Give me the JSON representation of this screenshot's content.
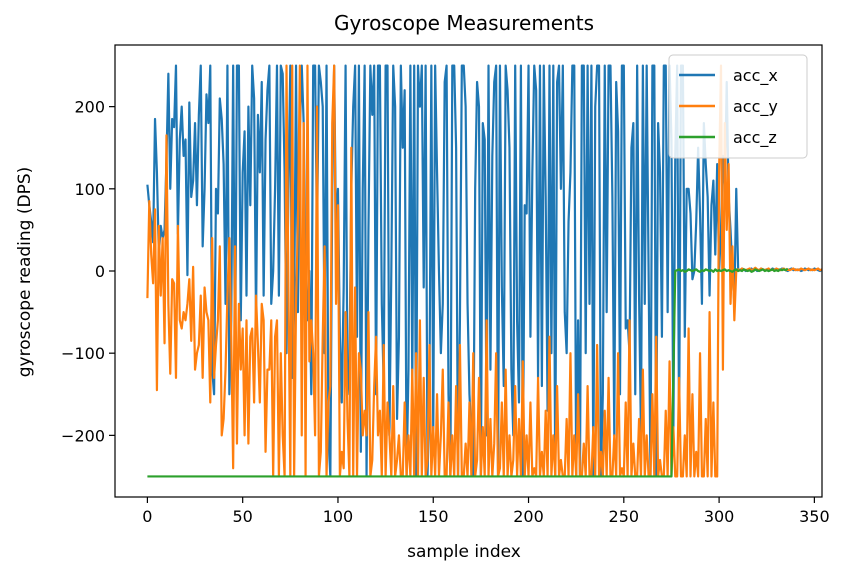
{
  "chart_data": {
    "type": "line",
    "title": "Gyroscope Measurements",
    "xlabel": "sample index",
    "ylabel": "gyroscope reading (DPS)",
    "xlim": [
      -17,
      354
    ],
    "ylim": [
      -275,
      275
    ],
    "xticks": [
      0,
      50,
      100,
      150,
      200,
      250,
      300,
      350
    ],
    "yticks": [
      -200,
      -100,
      0,
      100,
      200
    ],
    "ytick_labels": [
      "−200",
      "−100",
      "0",
      "100",
      "200"
    ],
    "grid": false,
    "legend_position": "top-right",
    "series": [
      {
        "name": "acc_x",
        "color": "#1f77b4",
        "x_start": 0,
        "values": [
          105,
          80,
          60,
          35,
          185,
          120,
          20,
          55,
          40,
          50,
          135,
          240,
          100,
          185,
          175,
          250,
          45,
          160,
          200,
          140,
          160,
          -5,
          205,
          90,
          110,
          180,
          80,
          190,
          250,
          30,
          100,
          215,
          180,
          250,
          -120,
          -150,
          100,
          70,
          210,
          185,
          130,
          -40,
          250,
          -150,
          -60,
          250,
          -120,
          250,
          250,
          -60,
          120,
          170,
          -30,
          200,
          80,
          250,
          210,
          -60,
          190,
          120,
          230,
          -30,
          160,
          220,
          250,
          -40,
          0,
          100,
          250,
          -30,
          250,
          240,
          120,
          -100,
          100,
          250,
          -130,
          -50,
          250,
          -50,
          170,
          250,
          180,
          -20,
          -60,
          0,
          -150,
          250,
          250,
          40,
          250,
          230,
          200,
          -100,
          250,
          -200,
          -250,
          100,
          250,
          40,
          100,
          -80,
          -160,
          -20,
          250,
          -150,
          -120,
          100,
          200,
          250,
          -80,
          250,
          -220,
          100,
          250,
          -250,
          50,
          250,
          190,
          250,
          -150,
          250,
          250,
          -40,
          -140,
          250,
          250,
          -200,
          0,
          250,
          200,
          -180,
          -80,
          250,
          150,
          220,
          -250,
          -120,
          250,
          -140,
          250,
          -250,
          250,
          200,
          250,
          -20,
          250,
          -250,
          -150,
          250,
          -200,
          250,
          120,
          0,
          -100,
          -40,
          230,
          250,
          -150,
          -250,
          250,
          250,
          150,
          -250,
          -60,
          250,
          250,
          200,
          -40,
          -150,
          -200,
          -250,
          100,
          230,
          200,
          -250,
          180,
          160,
          -200,
          250,
          -120,
          140,
          230,
          250,
          -250,
          250,
          -20,
          -140,
          250,
          220,
          150,
          -120,
          -200,
          250,
          -60,
          -160,
          250,
          -250,
          80,
          70,
          250,
          -80,
          120,
          250,
          220,
          -130,
          250,
          -140,
          250,
          90,
          -170,
          250,
          -100,
          250,
          -250,
          230,
          250,
          100,
          250,
          -50,
          -100,
          60,
          120,
          250,
          250,
          -250,
          -60,
          -250,
          250,
          250,
          -100,
          250,
          -40,
          250,
          -250,
          200,
          250,
          250,
          -250,
          -150,
          250,
          -50,
          250,
          250,
          90,
          -200,
          230,
          170,
          -150,
          250,
          250,
          -70,
          -60,
          -100,
          150,
          180,
          -150,
          250,
          -30,
          -200,
          250,
          -40,
          250,
          0,
          -250,
          250,
          250,
          -250,
          180,
          120,
          -80,
          250,
          250,
          -50,
          250,
          160,
          -200,
          140,
          250,
          -200,
          250,
          250,
          -80,
          100,
          100,
          70,
          -10,
          0,
          60,
          150,
          70,
          -40,
          180,
          130,
          90,
          -30,
          80,
          110,
          20,
          130,
          0,
          50,
          140,
          100,
          230,
          90,
          50,
          0,
          -40,
          100,
          2,
          1,
          3,
          2,
          0,
          1,
          2,
          3,
          1,
          2,
          0,
          1,
          3,
          2,
          1,
          2,
          0,
          1,
          3,
          2,
          1,
          2,
          1,
          3,
          2,
          1,
          0,
          2,
          3,
          1,
          2,
          1,
          2,
          0,
          1,
          3,
          2,
          1,
          2,
          1,
          3,
          2,
          1,
          0,
          2,
          1,
          2,
          3,
          1,
          2,
          0,
          2,
          1,
          3,
          2,
          1,
          2,
          1,
          3
        ]
      },
      {
        "name": "acc_y",
        "color": "#ff7f0e",
        "x_start": 0,
        "values": [
          -33,
          85,
          20,
          -15,
          75,
          -145,
          55,
          -30,
          40,
          -88,
          165,
          -40,
          -125,
          -10,
          -15,
          -130,
          55,
          -60,
          -70,
          -50,
          -60,
          -40,
          -10,
          -85,
          5,
          -120,
          -100,
          -90,
          -30,
          -130,
          -20,
          -50,
          -60,
          -160,
          40,
          -130,
          -90,
          -60,
          30,
          -200,
          -180,
          -120,
          -30,
          40,
          -80,
          -240,
          30,
          -210,
          -40,
          -120,
          -70,
          -200,
          -60,
          -210,
          -80,
          -70,
          -160,
          -30,
          -90,
          -160,
          -40,
          -60,
          -220,
          -120,
          -120,
          -60,
          -250,
          -80,
          -60,
          -250,
          -100,
          -200,
          -250,
          250,
          -20,
          -250,
          250,
          -250,
          -40,
          60,
          250,
          -200,
          180,
          -250,
          250,
          -110,
          -60,
          -100,
          -200,
          200,
          -250,
          -220,
          -80,
          30,
          -250,
          -160,
          -140,
          180,
          250,
          -40,
          80,
          -250,
          -220,
          -240,
          -50,
          -180,
          -250,
          150,
          -250,
          -20,
          -250,
          -100,
          -120,
          -200,
          -170,
          -200,
          -50,
          -250,
          -230,
          -140,
          -80,
          -200,
          -170,
          -250,
          -90,
          -250,
          -160,
          -200,
          -250,
          -140,
          -250,
          -230,
          -200,
          -250,
          -250,
          -160,
          -250,
          -200,
          -250,
          -120,
          -250,
          -100,
          -250,
          -60,
          -250,
          -130,
          -250,
          -230,
          -90,
          -250,
          -190,
          -250,
          -150,
          -250,
          -200,
          -120,
          -250,
          -250,
          -160,
          -250,
          -200,
          -250,
          -140,
          -250,
          -90,
          -250,
          -250,
          -210,
          -250,
          -160,
          -250,
          -100,
          -250,
          -230,
          -130,
          -250,
          -190,
          -250,
          -60,
          -250,
          -180,
          -250,
          -210,
          -100,
          -250,
          -240,
          -160,
          -250,
          -120,
          -250,
          -200,
          -250,
          -230,
          -140,
          -250,
          -180,
          -250,
          -110,
          -250,
          -200,
          -250,
          -160,
          -250,
          -240,
          -250,
          -130,
          -250,
          -220,
          -250,
          -170,
          -250,
          -80,
          -250,
          -200,
          -250,
          -140,
          -250,
          -230,
          -250,
          -250,
          -180,
          -250,
          -100,
          -250,
          -200,
          -250,
          -150,
          -250,
          -250,
          -210,
          -250,
          -140,
          -250,
          -250,
          -190,
          -250,
          -90,
          -250,
          -220,
          -250,
          -170,
          -250,
          -130,
          -250,
          -250,
          -200,
          -250,
          -100,
          -250,
          -240,
          -250,
          -160,
          -250,
          -60,
          -250,
          -210,
          -250,
          -250,
          -180,
          -250,
          -120,
          -250,
          -200,
          -250,
          -250,
          -150,
          -250,
          -80,
          -250,
          -230,
          -250,
          -250,
          -170,
          -250,
          -110,
          -250,
          -190,
          -250,
          -250,
          -130,
          -250,
          -250,
          -200,
          -250,
          -70,
          -250,
          -150,
          -250,
          -220,
          -250,
          -100,
          -250,
          -250,
          -180,
          -250,
          -50,
          -250,
          -160,
          -250,
          -250,
          120,
          250,
          -120,
          180,
          50,
          130,
          -40,
          30,
          -60,
          0,
          2,
          1,
          3,
          2,
          1,
          2,
          3,
          1,
          2,
          4,
          2,
          1,
          3,
          2,
          1,
          2,
          3,
          1,
          2,
          1,
          3,
          2,
          1,
          2,
          3,
          1,
          2,
          1,
          2,
          3,
          1,
          2,
          1,
          3,
          2,
          1,
          2,
          3,
          1,
          2,
          1,
          2,
          3,
          1,
          2,
          1,
          3,
          2,
          1,
          2,
          3,
          1,
          2
        ]
      },
      {
        "name": "acc_z",
        "color": "#2ca02c",
        "x_start": 0,
        "constant_segment": {
          "x_end": 275,
          "value": -250
        },
        "tail_start": 277,
        "tail_values": [
          0,
          1,
          2,
          0,
          1,
          -1,
          0,
          2,
          1,
          0,
          1,
          2,
          0,
          -1,
          1,
          0,
          2,
          1,
          0,
          1,
          -1,
          2,
          0,
          1,
          0,
          1,
          2,
          0,
          1,
          0,
          -1,
          1,
          2,
          0,
          1,
          0,
          2,
          1,
          0,
          1,
          -1,
          0,
          2,
          1,
          0,
          1,
          2,
          0,
          1,
          0,
          1,
          2,
          0,
          1,
          0,
          2,
          1,
          2,
          1,
          3
        ]
      }
    ]
  }
}
